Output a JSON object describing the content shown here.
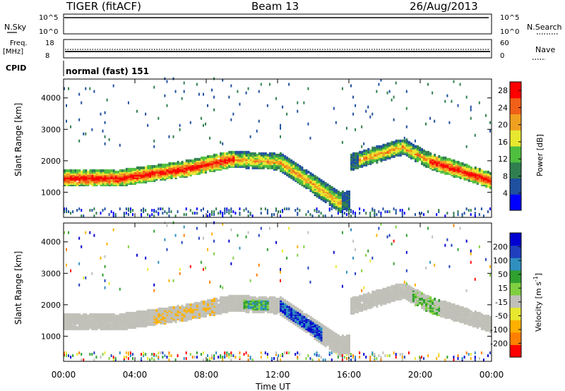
{
  "header": {
    "radar": "TIGER (fitACF)",
    "beam": "Beam 13",
    "date": "26/Aug/2013"
  },
  "top_panels": {
    "nsky_label": "N.Sky",
    "nsky_ticks": [
      "10^5",
      "10^0"
    ],
    "nsearch_label": "N.Search",
    "nsearch_ticks": [
      "10^5",
      "10^0"
    ],
    "freq_label_1": "Freq.",
    "freq_label_2": "[MHz]",
    "freq_ticks": [
      "18",
      "8"
    ],
    "nave_label": "Nave",
    "nave_ticks": [
      "60",
      "0"
    ],
    "cpid_label": "CPID",
    "cpid_text": "normal (fast) 151"
  },
  "power_colorbar": {
    "label": "Power [dB]",
    "ticks": [
      "28",
      "24",
      "20",
      "16",
      "12",
      "8",
      "4"
    ],
    "colors": [
      "#0000ff",
      "#1f4f9f",
      "#2f7f4f",
      "#4fbf3f",
      "#e8e830",
      "#f0a020",
      "#f06018",
      "#ff0000"
    ]
  },
  "velocity_colorbar": {
    "label": "Velocity [m s",
    "label_sup": "-1",
    "label_end": "]",
    "ticks": [
      "200",
      "100",
      "50",
      "15",
      "-15",
      "-50",
      "-100",
      "-200"
    ],
    "colors": [
      "#ff0000",
      "#ff7f00",
      "#ffb000",
      "#e8e830",
      "#c0c0b8",
      "#7fd040",
      "#30a030",
      "#2f8fbf",
      "#1f3fbf",
      "#0000d0"
    ]
  },
  "chart_data": [
    {
      "type": "heatmap",
      "title": "Power",
      "ylabel": "Slant Range [km]",
      "xlabel": "",
      "y_ticks": [
        "4000",
        "3000",
        "2000",
        "1000"
      ],
      "ylim": [
        200,
        4600
      ],
      "x_ticks": [
        "00:00",
        "04:00",
        "08:00",
        "12:00",
        "16:00",
        "20:00",
        "00:00"
      ],
      "colorbar_range_db": [
        0,
        30
      ],
      "scatter_bands": [
        {
          "from_ut": 0,
          "to_ut": 9.5,
          "center_km": [
            1400,
            1500,
            1700,
            1900
          ],
          "power_db": 24
        },
        {
          "from_ut": 9.5,
          "to_ut": 12,
          "center_km": [
            1900,
            2000
          ],
          "power_db": 18
        },
        {
          "from_ut": 12,
          "to_ut": 15.5,
          "center_km": [
            2000,
            1400,
            600
          ],
          "power_db": 12
        },
        {
          "from_ut": 16,
          "to_ut": 19,
          "center_km": [
            2000,
            2400
          ],
          "power_db": 16
        },
        {
          "from_ut": 19,
          "to_ut": 24,
          "center_km": [
            2400,
            1300
          ],
          "power_db": 22
        }
      ]
    },
    {
      "type": "heatmap",
      "title": "Velocity",
      "ylabel": "Slant Range [km]",
      "xlabel": "Time UT",
      "y_ticks": [
        "4000",
        "3000",
        "2000",
        "1000"
      ],
      "ylim": [
        200,
        4600
      ],
      "x_ticks": [
        "00:00",
        "04:00",
        "08:00",
        "12:00",
        "16:00",
        "20:00",
        "00:00"
      ],
      "colorbar_range_ms": [
        -200,
        200
      ]
    }
  ]
}
